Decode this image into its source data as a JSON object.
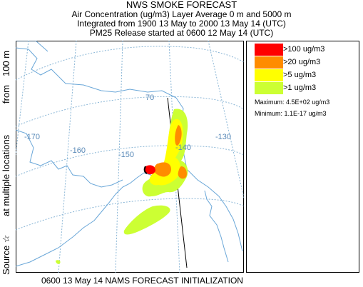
{
  "header": {
    "title": "NWS SMOKE FORECAST",
    "line1": "Air Concentration (ug/m3) Layer Average    0 m and  5000 m",
    "line2": "Integrated from 1900 13 May to 2000 13 May 14 (UTC)",
    "line3": "PM25 Release started at 0600 12 May 14 (UTC)"
  },
  "side_label": {
    "source": "Source ☆",
    "locations": "at multiple locations",
    "from": "from",
    "height": "100 m"
  },
  "footer": "0600 13 May 14 NAMS FORECAST INITIALIZATION",
  "map": {
    "lon_labels": [
      "-170",
      "-160",
      "-150",
      "-140",
      "-130"
    ],
    "lat_label": "70",
    "colors": {
      "level_100": "#ff0000",
      "level_20": "#ff8c00",
      "level_5": "#ffff00",
      "level_1": "#ccff33",
      "graticule": "#8ab6d6",
      "coast": "#6aa7d8",
      "border": "#000000"
    }
  },
  "legend": {
    "items": [
      {
        "label": ">100 ug/m3",
        "color": "#ff0000"
      },
      {
        "label": ">20 ug/m3",
        "color": "#ff8c00"
      },
      {
        "label": ">5 ug/m3",
        "color": "#ffff00"
      },
      {
        "label": ">1 ug/m3",
        "color": "#ccff33"
      }
    ],
    "maximum": "Maximum: 4.5E+02 ug/m3",
    "minimum": "Minimum: 1.1E-17 ug/m3"
  }
}
